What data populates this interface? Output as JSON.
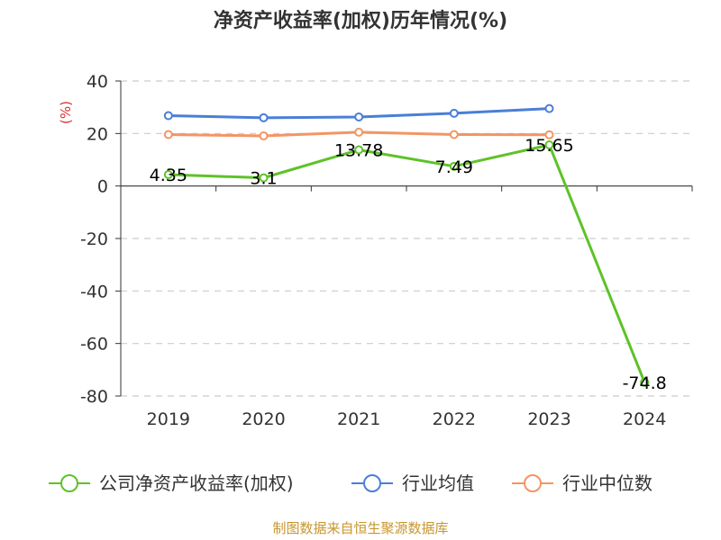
{
  "chart_data": {
    "type": "line",
    "title": "净资产收益率(加权)历年情况(%)",
    "ylabel": "(%)",
    "xlabel": "",
    "categories": [
      "2019",
      "2020",
      "2021",
      "2022",
      "2023",
      "2024"
    ],
    "ylim": [
      -80,
      40
    ],
    "yticks": [
      40,
      20,
      0,
      -20,
      -40,
      -60,
      -80
    ],
    "ytick_labels": [
      "40",
      "20",
      "0",
      "-20",
      "-40",
      "-60",
      "-80"
    ],
    "grid": "dashed horizontal",
    "legend_position": "bottom",
    "series": [
      {
        "name": "公司净资产收益率(加权)",
        "color": "#5ec229",
        "values": [
          4.35,
          3.1,
          13.78,
          7.49,
          15.65,
          -74.8
        ],
        "labels": [
          "4.35",
          "3.1",
          "13.78",
          "7.49",
          "15.65",
          "-74.8"
        ]
      },
      {
        "name": "行业均值",
        "color": "#4a7fd6",
        "values": [
          26.8,
          26.0,
          26.3,
          27.7,
          29.5,
          null
        ]
      },
      {
        "name": "行业中位数",
        "color": "#f39563",
        "values": [
          19.6,
          19.1,
          20.5,
          19.6,
          19.5,
          null
        ]
      }
    ]
  },
  "source": "制图数据来自恒生聚源数据库"
}
